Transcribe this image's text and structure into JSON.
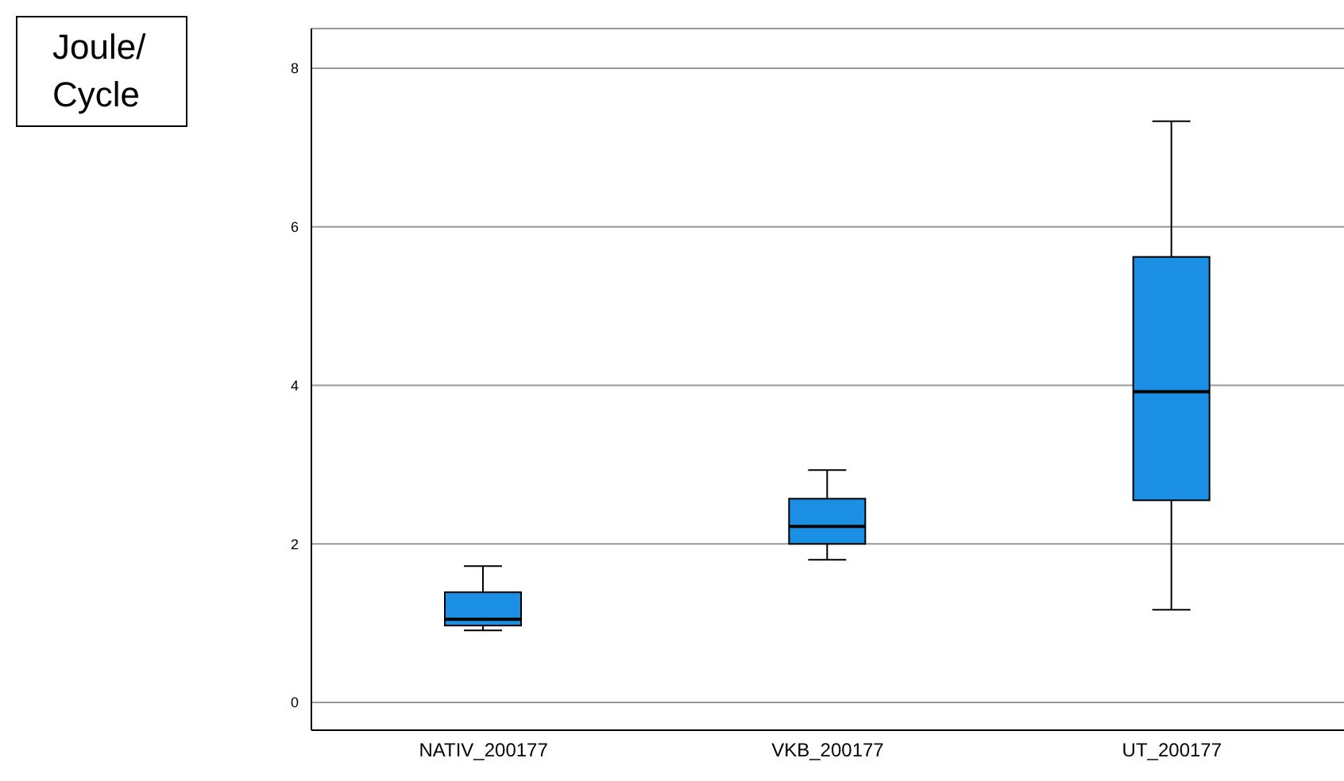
{
  "chart_data": {
    "type": "box",
    "ylabel": "Joule/Cycle",
    "categories": [
      "NATIV_200177",
      "VKB_200177",
      "UT_200177"
    ],
    "boxes": [
      {
        "low": 0.91,
        "q1": 0.97,
        "median": 1.05,
        "q3": 1.39,
        "high": 1.72
      },
      {
        "low": 1.8,
        "q1": 2.0,
        "median": 2.22,
        "q3": 2.57,
        "high": 2.93
      },
      {
        "low": 1.17,
        "q1": 2.55,
        "median": 3.92,
        "q3": 5.62,
        "high": 7.33
      }
    ],
    "color": "#1a8fe3",
    "ylim": [
      -0.35,
      8.5
    ],
    "yticks": [
      0,
      2,
      4,
      6,
      8
    ],
    "grid": "y"
  }
}
